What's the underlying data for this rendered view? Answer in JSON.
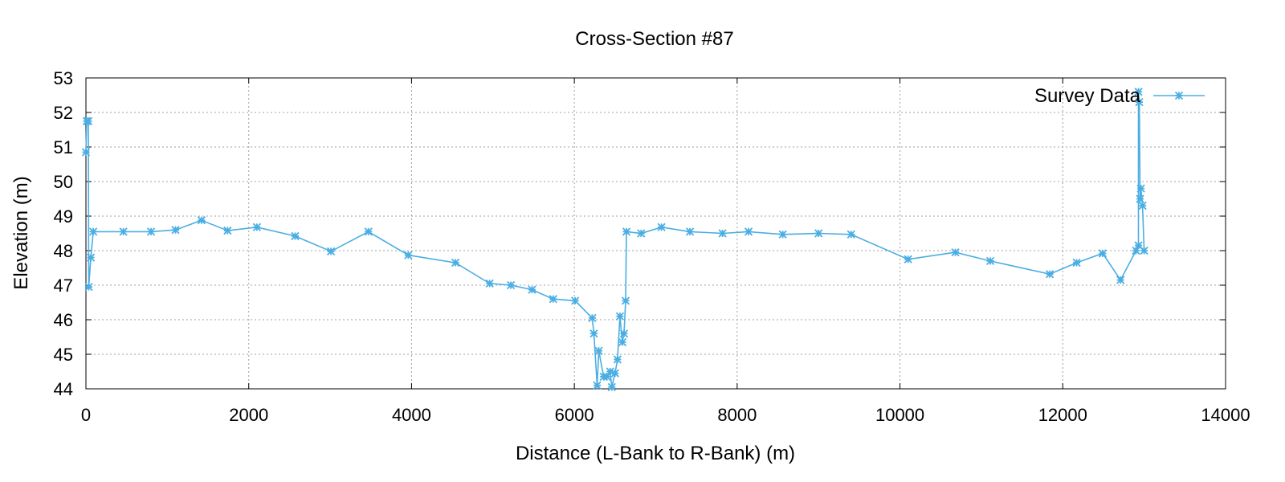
{
  "chart_data": {
    "type": "line",
    "title": "Cross-Section #87",
    "xlabel": "Distance (L-Bank to R-Bank) (m)",
    "ylabel": "Elevation (m)",
    "xlim": [
      0,
      14000
    ],
    "ylim": [
      44,
      53
    ],
    "xticks": [
      0,
      2000,
      4000,
      6000,
      8000,
      10000,
      12000,
      14000
    ],
    "yticks": [
      44,
      45,
      46,
      47,
      48,
      49,
      50,
      51,
      52,
      53
    ],
    "grid": true,
    "legend_position": "top-right",
    "series": [
      {
        "name": "Survey Data",
        "color": "#4aaee3",
        "marker": "asterisk",
        "points": [
          [
            0,
            50.85
          ],
          [
            10,
            51.75
          ],
          [
            30,
            51.75
          ],
          [
            35,
            46.95
          ],
          [
            60,
            47.8
          ],
          [
            90,
            48.55
          ],
          [
            460,
            48.55
          ],
          [
            800,
            48.55
          ],
          [
            1100,
            48.6
          ],
          [
            1420,
            48.88
          ],
          [
            1740,
            48.58
          ],
          [
            2100,
            48.68
          ],
          [
            2570,
            48.42
          ],
          [
            3010,
            47.98
          ],
          [
            3470,
            48.55
          ],
          [
            3960,
            47.87
          ],
          [
            4540,
            47.65
          ],
          [
            4960,
            47.05
          ],
          [
            5220,
            47.0
          ],
          [
            5480,
            46.87
          ],
          [
            5740,
            46.6
          ],
          [
            6010,
            46.55
          ],
          [
            6220,
            46.05
          ],
          [
            6240,
            45.6
          ],
          [
            6280,
            44.1
          ],
          [
            6300,
            45.1
          ],
          [
            6360,
            44.35
          ],
          [
            6400,
            44.35
          ],
          [
            6440,
            44.5
          ],
          [
            6460,
            44.05
          ],
          [
            6500,
            44.45
          ],
          [
            6530,
            44.85
          ],
          [
            6560,
            46.1
          ],
          [
            6590,
            45.35
          ],
          [
            6610,
            45.6
          ],
          [
            6630,
            46.55
          ],
          [
            6640,
            48.55
          ],
          [
            6820,
            48.5
          ],
          [
            7070,
            48.68
          ],
          [
            7420,
            48.55
          ],
          [
            7820,
            48.5
          ],
          [
            8140,
            48.55
          ],
          [
            8560,
            48.47
          ],
          [
            9000,
            48.5
          ],
          [
            9400,
            48.47
          ],
          [
            10100,
            47.75
          ],
          [
            10680,
            47.95
          ],
          [
            11110,
            47.7
          ],
          [
            11840,
            47.32
          ],
          [
            12170,
            47.65
          ],
          [
            12490,
            47.92
          ],
          [
            12710,
            47.15
          ],
          [
            12900,
            48.0
          ],
          [
            12930,
            48.15
          ],
          [
            12930,
            52.6
          ],
          [
            12940,
            52.3
          ],
          [
            12950,
            49.5
          ],
          [
            12960,
            49.8
          ],
          [
            12980,
            49.3
          ],
          [
            13000,
            48.0
          ]
        ]
      }
    ]
  }
}
